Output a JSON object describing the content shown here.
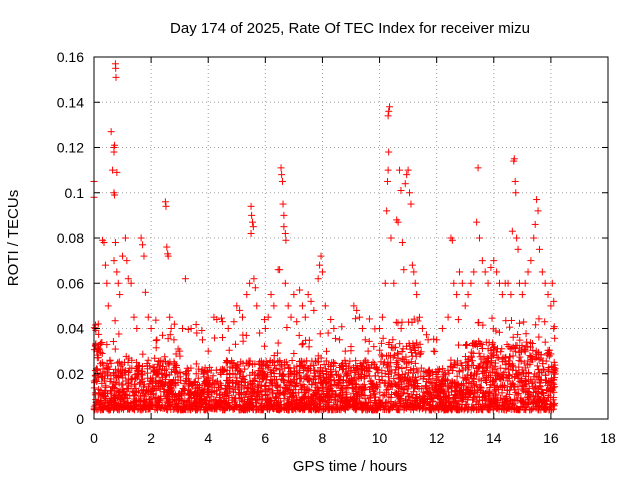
{
  "chart_data": {
    "type": "scatter",
    "title": "Day 174 of 2025, Rate Of TEC Index for receiver mizu",
    "xlabel": "GPS time / hours",
    "ylabel": "ROTI / TECUs",
    "xlim": [
      0,
      18
    ],
    "ylim": [
      0,
      0.16
    ],
    "xticks": [
      0,
      2,
      4,
      6,
      8,
      10,
      12,
      14,
      16,
      18
    ],
    "xtick_labels": [
      "0",
      "2",
      "4",
      "6",
      "8",
      "10",
      "12",
      "14",
      "16",
      "18"
    ],
    "yticks": [
      0,
      0.02,
      0.04,
      0.06,
      0.08,
      0.1,
      0.12,
      0.14,
      0.16
    ],
    "ytick_labels": [
      "0",
      "0.02",
      "0.04",
      "0.06",
      "0.08",
      "0.1",
      "0.12",
      "0.14",
      "0.16"
    ],
    "grid": true,
    "marker": "plus",
    "color": "#ff0000",
    "series": [
      {
        "name": "mizu",
        "points": [
          [
            0.0,
            0.105
          ],
          [
            0.0,
            0.098
          ],
          [
            0.05,
            0.04
          ],
          [
            0.1,
            0.03
          ],
          [
            0.15,
            0.042
          ],
          [
            0.3,
            0.079
          ],
          [
            0.35,
            0.078
          ],
          [
            0.4,
            0.068
          ],
          [
            0.45,
            0.06
          ],
          [
            0.5,
            0.05
          ],
          [
            0.6,
            0.127
          ],
          [
            0.65,
            0.11
          ],
          [
            0.7,
            0.12
          ],
          [
            0.7,
            0.118
          ],
          [
            0.72,
            0.121
          ],
          [
            0.75,
            0.157
          ],
          [
            0.76,
            0.155
          ],
          [
            0.77,
            0.151
          ],
          [
            0.7,
            0.1
          ],
          [
            0.72,
            0.099
          ],
          [
            0.8,
            0.109
          ],
          [
            0.75,
            0.078
          ],
          [
            0.7,
            0.07
          ],
          [
            0.8,
            0.065
          ],
          [
            0.85,
            0.06
          ],
          [
            0.9,
            0.055
          ],
          [
            1.0,
            0.072
          ],
          [
            1.1,
            0.08
          ],
          [
            1.15,
            0.07
          ],
          [
            1.2,
            0.062
          ],
          [
            1.3,
            0.06
          ],
          [
            1.4,
            0.045
          ],
          [
            1.5,
            0.04
          ],
          [
            1.65,
            0.08
          ],
          [
            1.7,
            0.077
          ],
          [
            1.75,
            0.072
          ],
          [
            1.8,
            0.056
          ],
          [
            1.9,
            0.045
          ],
          [
            2.0,
            0.04
          ],
          [
            2.2,
            0.035
          ],
          [
            2.4,
            0.037
          ],
          [
            2.5,
            0.096
          ],
          [
            2.52,
            0.094
          ],
          [
            2.55,
            0.076
          ],
          [
            2.58,
            0.073
          ],
          [
            2.6,
            0.072
          ],
          [
            2.65,
            0.045
          ],
          [
            2.7,
            0.04
          ],
          [
            2.8,
            0.035
          ],
          [
            3.0,
            0.03
          ],
          [
            3.1,
            0.04
          ],
          [
            3.2,
            0.062
          ],
          [
            3.4,
            0.04
          ],
          [
            3.6,
            0.038
          ],
          [
            3.8,
            0.035
          ],
          [
            4.0,
            0.03
          ],
          [
            4.2,
            0.045
          ],
          [
            4.3,
            0.044
          ],
          [
            4.5,
            0.036
          ],
          [
            4.7,
            0.04
          ],
          [
            4.9,
            0.043
          ],
          [
            5.0,
            0.05
          ],
          [
            5.1,
            0.048
          ],
          [
            5.2,
            0.045
          ],
          [
            5.35,
            0.055
          ],
          [
            5.45,
            0.06
          ],
          [
            5.5,
            0.094
          ],
          [
            5.52,
            0.09
          ],
          [
            5.55,
            0.087
          ],
          [
            5.58,
            0.085
          ],
          [
            5.5,
            0.082
          ],
          [
            5.6,
            0.062
          ],
          [
            5.65,
            0.058
          ],
          [
            5.7,
            0.05
          ],
          [
            5.8,
            0.038
          ],
          [
            6.0,
            0.04
          ],
          [
            6.1,
            0.045
          ],
          [
            6.2,
            0.055
          ],
          [
            6.3,
            0.05
          ],
          [
            6.45,
            0.066
          ],
          [
            6.5,
            0.066
          ],
          [
            6.55,
            0.111
          ],
          [
            6.57,
            0.108
          ],
          [
            6.6,
            0.105
          ],
          [
            6.62,
            0.095
          ],
          [
            6.65,
            0.09
          ],
          [
            6.65,
            0.085
          ],
          [
            6.7,
            0.082
          ],
          [
            6.72,
            0.079
          ],
          [
            6.7,
            0.06
          ],
          [
            6.8,
            0.05
          ],
          [
            6.9,
            0.045
          ],
          [
            7.0,
            0.055
          ],
          [
            7.1,
            0.043
          ],
          [
            7.2,
            0.057
          ],
          [
            7.3,
            0.05
          ],
          [
            7.4,
            0.045
          ],
          [
            7.5,
            0.055
          ],
          [
            7.6,
            0.052
          ],
          [
            7.7,
            0.048
          ],
          [
            7.85,
            0.062
          ],
          [
            7.9,
            0.068
          ],
          [
            7.95,
            0.072
          ],
          [
            8.0,
            0.065
          ],
          [
            8.1,
            0.05
          ],
          [
            8.2,
            0.038
          ],
          [
            8.4,
            0.04
          ],
          [
            8.6,
            0.035
          ],
          [
            8.8,
            0.03
          ],
          [
            9.0,
            0.032
          ],
          [
            9.1,
            0.05
          ],
          [
            9.2,
            0.048
          ],
          [
            9.3,
            0.045
          ],
          [
            9.4,
            0.04
          ],
          [
            9.5,
            0.035
          ],
          [
            9.6,
            0.03
          ],
          [
            9.8,
            0.032
          ],
          [
            10.0,
            0.04
          ],
          [
            10.1,
            0.045
          ],
          [
            10.2,
            0.06
          ],
          [
            10.25,
            0.092
          ],
          [
            10.28,
            0.105
          ],
          [
            10.3,
            0.11
          ],
          [
            10.32,
            0.118
          ],
          [
            10.3,
            0.134
          ],
          [
            10.32,
            0.136
          ],
          [
            10.35,
            0.138
          ],
          [
            10.4,
            0.08
          ],
          [
            10.5,
            0.06
          ],
          [
            10.6,
            0.088
          ],
          [
            10.65,
            0.087
          ],
          [
            10.7,
            0.11
          ],
          [
            10.75,
            0.101
          ],
          [
            10.8,
            0.078
          ],
          [
            10.85,
            0.066
          ],
          [
            10.9,
            0.104
          ],
          [
            10.95,
            0.108
          ],
          [
            11.0,
            0.11
          ],
          [
            11.05,
            0.1
          ],
          [
            11.1,
            0.095
          ],
          [
            11.15,
            0.068
          ],
          [
            11.2,
            0.065
          ],
          [
            11.25,
            0.06
          ],
          [
            11.3,
            0.055
          ],
          [
            11.4,
            0.045
          ],
          [
            11.5,
            0.04
          ],
          [
            11.7,
            0.035
          ],
          [
            11.9,
            0.03
          ],
          [
            12.0,
            0.035
          ],
          [
            12.2,
            0.04
          ],
          [
            12.4,
            0.045
          ],
          [
            12.5,
            0.08
          ],
          [
            12.55,
            0.079
          ],
          [
            12.6,
            0.06
          ],
          [
            12.7,
            0.055
          ],
          [
            12.8,
            0.065
          ],
          [
            12.9,
            0.06
          ],
          [
            13.0,
            0.05
          ],
          [
            13.1,
            0.055
          ],
          [
            13.2,
            0.06
          ],
          [
            13.3,
            0.065
          ],
          [
            13.4,
            0.087
          ],
          [
            13.45,
            0.111
          ],
          [
            13.5,
            0.08
          ],
          [
            13.6,
            0.07
          ],
          [
            13.7,
            0.065
          ],
          [
            13.8,
            0.06
          ],
          [
            13.9,
            0.067
          ],
          [
            14.0,
            0.07
          ],
          [
            14.1,
            0.065
          ],
          [
            14.2,
            0.06
          ],
          [
            14.3,
            0.055
          ],
          [
            14.4,
            0.06
          ],
          [
            14.5,
            0.06
          ],
          [
            14.6,
            0.055
          ],
          [
            14.65,
            0.083
          ],
          [
            14.7,
            0.114
          ],
          [
            14.72,
            0.115
          ],
          [
            14.75,
            0.105
          ],
          [
            14.77,
            0.1
          ],
          [
            14.8,
            0.08
          ],
          [
            14.85,
            0.075
          ],
          [
            14.9,
            0.06
          ],
          [
            15.0,
            0.055
          ],
          [
            15.1,
            0.06
          ],
          [
            15.2,
            0.065
          ],
          [
            15.3,
            0.07
          ],
          [
            15.4,
            0.08
          ],
          [
            15.45,
            0.086
          ],
          [
            15.5,
            0.097
          ],
          [
            15.55,
            0.092
          ],
          [
            15.6,
            0.075
          ],
          [
            15.7,
            0.065
          ],
          [
            15.8,
            0.06
          ],
          [
            15.9,
            0.055
          ],
          [
            16.0,
            0.05
          ],
          [
            16.05,
            0.06
          ],
          [
            16.1,
            0.052
          ],
          [
            16.1,
            0.04
          ]
        ]
      }
    ]
  }
}
